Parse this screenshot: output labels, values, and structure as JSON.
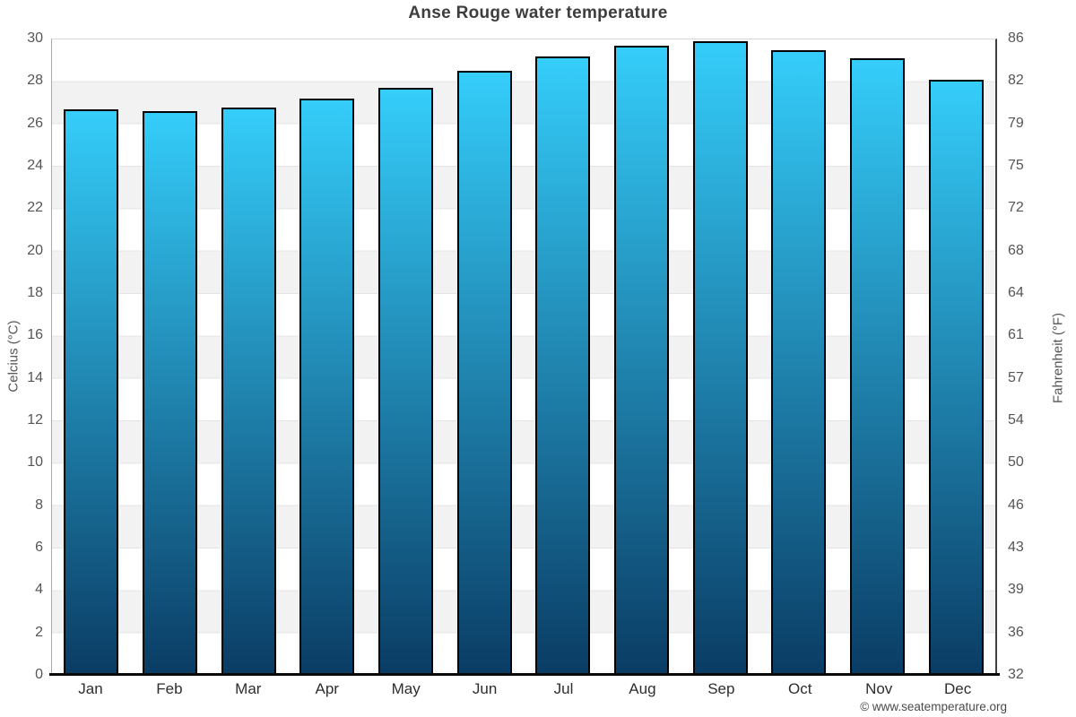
{
  "chart_data": {
    "type": "bar",
    "title": "Anse Rouge water temperature",
    "categories": [
      "Jan",
      "Feb",
      "Mar",
      "Apr",
      "May",
      "Jun",
      "Jul",
      "Aug",
      "Sep",
      "Oct",
      "Nov",
      "Dec"
    ],
    "values": [
      26.7,
      26.6,
      26.8,
      27.2,
      27.7,
      28.5,
      29.2,
      29.7,
      29.9,
      29.5,
      29.1,
      28.1
    ],
    "unit": "°C",
    "ylabel_left": "Celcius (°C)",
    "ylabel_right": "Fahrenheit (°F)",
    "ylim": [
      0,
      30
    ],
    "ytick_step_celsius": 2,
    "yticks_celsius": [
      30,
      28,
      26,
      24,
      22,
      20,
      18,
      16,
      14,
      12,
      10,
      8,
      6,
      4,
      2,
      0
    ],
    "yticks_fahrenheit": [
      86,
      82,
      79,
      75,
      72,
      68,
      64,
      61,
      57,
      54,
      50,
      46,
      43,
      39,
      36,
      32
    ],
    "grid": true,
    "legend": false,
    "plot_bands_alternating": true,
    "colors": {
      "bar_gradient_top": "#35cdfa",
      "bar_gradient_bottom": "#0a3c64",
      "bar_border": "#000000",
      "band": "#f2f2f2",
      "gridline": "#e4e4e4",
      "title_text": "#3d3d3d",
      "axis_text": "#555555",
      "month_text": "#2e2e2e",
      "bottom_axis": "#0a0a0a"
    }
  },
  "footer": {
    "copyright": "© www.seatemperature.org"
  }
}
